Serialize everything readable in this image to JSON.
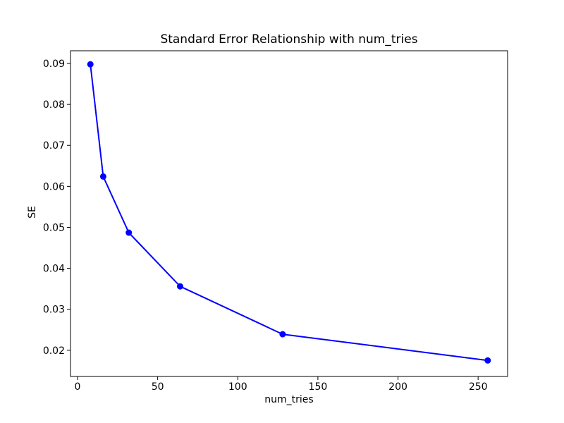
{
  "chart_data": {
    "type": "line",
    "title": "Standard Error Relationship with num_tries",
    "xlabel": "num_tries",
    "ylabel": "SE",
    "x": [
      8,
      16,
      32,
      64,
      128,
      256
    ],
    "y": [
      0.0898,
      0.0624,
      0.0487,
      0.0356,
      0.0239,
      0.0175
    ],
    "xlim": [
      -4.4,
      268.4
    ],
    "ylim": [
      0.0136,
      0.0931
    ],
    "xticks": {
      "values": [
        0,
        50,
        100,
        150,
        200,
        250
      ],
      "labels": [
        "0",
        "50",
        "100",
        "150",
        "200",
        "250"
      ]
    },
    "yticks": {
      "values": [
        0.02,
        0.03,
        0.04,
        0.05,
        0.06,
        0.07,
        0.08,
        0.09
      ],
      "labels": [
        "0.02",
        "0.03",
        "0.04",
        "0.05",
        "0.06",
        "0.07",
        "0.08",
        "0.09"
      ]
    },
    "line_color": "#0000ff",
    "marker": "o",
    "grid": false,
    "legend": null,
    "frame_color": "#000000",
    "background": "#ffffff"
  }
}
